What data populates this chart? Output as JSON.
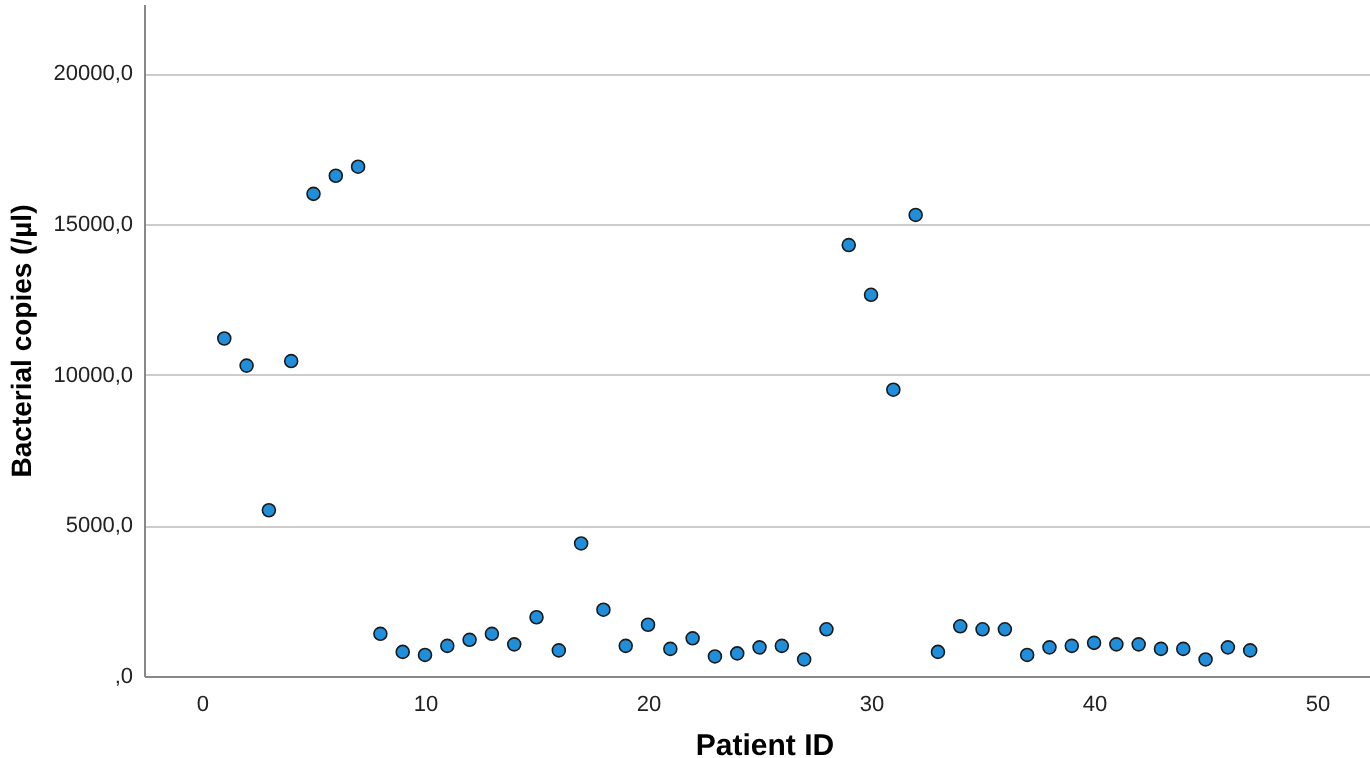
{
  "chart_data": {
    "type": "scatter",
    "xlabel": "Patient ID",
    "ylabel": "Bacterial copies (/µl)",
    "x": [
      1,
      2,
      3,
      4,
      5,
      6,
      7,
      8,
      9,
      10,
      11,
      12,
      13,
      14,
      15,
      16,
      17,
      18,
      19,
      20,
      21,
      22,
      23,
      24,
      25,
      26,
      27,
      28,
      29,
      30,
      31,
      32,
      33,
      34,
      35,
      36,
      37,
      38,
      39,
      40,
      41,
      42,
      43,
      44,
      45,
      46,
      47
    ],
    "series": [
      {
        "color": "#1f8fdc",
        "values": [
          11200,
          10300,
          5500,
          10450,
          16000,
          16600,
          16900,
          1400,
          800,
          700,
          1000,
          1200,
          1400,
          1050,
          1950,
          850,
          4400,
          2200,
          1000,
          1700,
          900,
          1250,
          650,
          750,
          950,
          1000,
          550,
          1550,
          14300,
          12650,
          9500,
          15300,
          800,
          1650,
          1550,
          1550,
          700,
          950,
          1000,
          1100,
          1050,
          1050,
          900,
          900,
          550,
          950,
          850
        ]
      }
    ],
    "xlim": [
      -2.6,
      53
    ],
    "ylim": [
      0,
      22300
    ],
    "xticks": [
      0,
      10,
      20,
      30,
      40,
      50
    ],
    "yticks": [
      {
        "value": 0,
        "label": ",0"
      },
      {
        "value": 5000,
        "label": "5000,0"
      },
      {
        "value": 10000,
        "label": "10000,0"
      },
      {
        "value": 15000,
        "label": "15000,0"
      },
      {
        "value": 20000,
        "label": "20000,0"
      }
    ],
    "grid": "y",
    "marker": "circle",
    "legend": false
  }
}
